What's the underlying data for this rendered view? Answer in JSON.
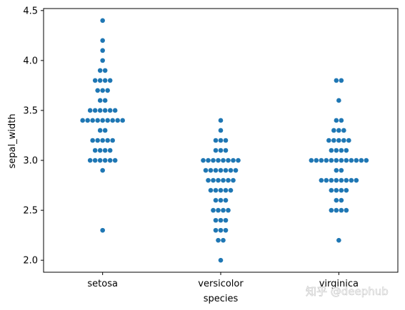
{
  "chart_data": {
    "type": "scatter",
    "subtype": "swarm",
    "xlabel": "species",
    "ylabel": "sepal_width",
    "categories": [
      "setosa",
      "versicolor",
      "virginica"
    ],
    "ylim": [
      1.88,
      4.52
    ],
    "yticks": [
      2.0,
      2.5,
      3.0,
      3.5,
      4.0,
      4.5
    ],
    "ytick_labels": [
      "2.0",
      "2.5",
      "3.0",
      "3.5",
      "4.0",
      "4.5"
    ],
    "grid": false,
    "legend": "none",
    "marker_color": "#1f77b4",
    "groups": [
      {
        "category": "setosa",
        "values": [
          2.3,
          2.9,
          3.0,
          3.0,
          3.0,
          3.0,
          3.0,
          3.0,
          3.1,
          3.1,
          3.1,
          3.1,
          3.2,
          3.2,
          3.2,
          3.2,
          3.2,
          3.3,
          3.3,
          3.4,
          3.4,
          3.4,
          3.4,
          3.4,
          3.4,
          3.4,
          3.4,
          3.4,
          3.5,
          3.5,
          3.5,
          3.5,
          3.5,
          3.5,
          3.6,
          3.6,
          3.7,
          3.7,
          3.7,
          3.8,
          3.8,
          3.8,
          3.8,
          3.9,
          3.9,
          4.0,
          4.1,
          4.2,
          4.4
        ]
      },
      {
        "category": "versicolor",
        "values": [
          2.0,
          2.2,
          2.2,
          2.3,
          2.3,
          2.3,
          2.4,
          2.4,
          2.4,
          2.5,
          2.5,
          2.5,
          2.5,
          2.6,
          2.6,
          2.6,
          2.7,
          2.7,
          2.7,
          2.7,
          2.7,
          2.8,
          2.8,
          2.8,
          2.8,
          2.8,
          2.8,
          2.9,
          2.9,
          2.9,
          2.9,
          2.9,
          2.9,
          2.9,
          3.0,
          3.0,
          3.0,
          3.0,
          3.0,
          3.0,
          3.0,
          3.0,
          3.1,
          3.1,
          3.1,
          3.2,
          3.2,
          3.2,
          3.3,
          3.4
        ]
      },
      {
        "category": "virginica",
        "values": [
          2.2,
          2.5,
          2.5,
          2.5,
          2.5,
          2.6,
          2.6,
          2.7,
          2.7,
          2.7,
          2.7,
          2.8,
          2.8,
          2.8,
          2.8,
          2.8,
          2.8,
          2.8,
          2.8,
          2.9,
          2.9,
          3.0,
          3.0,
          3.0,
          3.0,
          3.0,
          3.0,
          3.0,
          3.0,
          3.0,
          3.0,
          3.0,
          3.0,
          3.1,
          3.1,
          3.1,
          3.1,
          3.2,
          3.2,
          3.2,
          3.2,
          3.2,
          3.3,
          3.3,
          3.3,
          3.4,
          3.4,
          3.6,
          3.8,
          3.8
        ]
      }
    ]
  },
  "watermark": {
    "text": "知乎 @deephub"
  }
}
